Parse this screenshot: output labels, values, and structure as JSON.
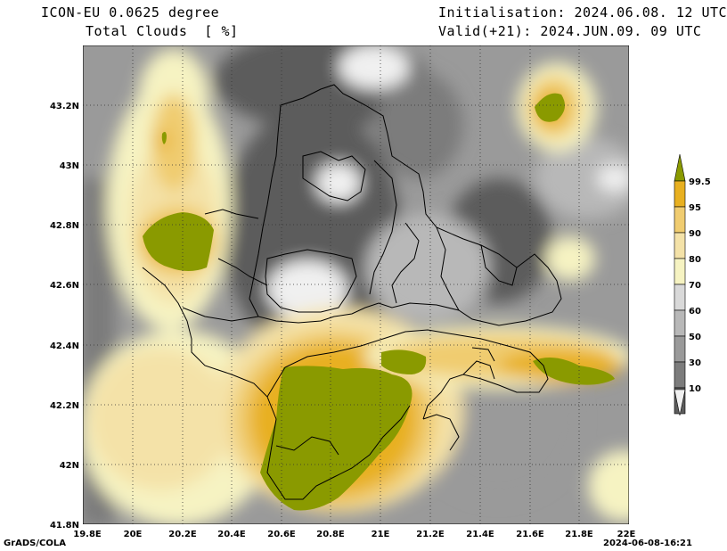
{
  "header": {
    "model": "ICON-EU 0.0625 degree",
    "field": "Total Clouds  [ %]",
    "init": "Initialisation: 2024.06.08. 12 UTC",
    "valid": "Valid(+21): 2024.JUN.09. 09 UTC"
  },
  "map": {
    "lon_range": [
      19.8,
      22.0
    ],
    "lat_range": [
      41.8,
      43.4
    ],
    "lat_ticks": [
      "43.2N",
      "43N",
      "42.8N",
      "42.6N",
      "42.4N",
      "42.2N",
      "42N",
      "41.8N"
    ],
    "lon_ticks": [
      "19.8E",
      "20E",
      "20.2E",
      "20.4E",
      "20.6E",
      "20.8E",
      "21E",
      "21.2E",
      "21.4E",
      "21.6E",
      "21.8E",
      "22E"
    ]
  },
  "colorbar": {
    "labels": [
      "99.5",
      "95",
      "90",
      "80",
      "70",
      "60",
      "50",
      "30",
      "10"
    ],
    "colors": [
      "#8a9a00",
      "#e8b020",
      "#f0cc70",
      "#f4e2a8",
      "#f6f3c2",
      "#d9d9d9",
      "#b8b8b8",
      "#9a9a9a",
      "#7c7c7c",
      "#5c5c5c",
      "#f0f0f0"
    ]
  },
  "footer": {
    "left": "GrADS/COLA",
    "right": "2024-06-08-16:21"
  }
}
